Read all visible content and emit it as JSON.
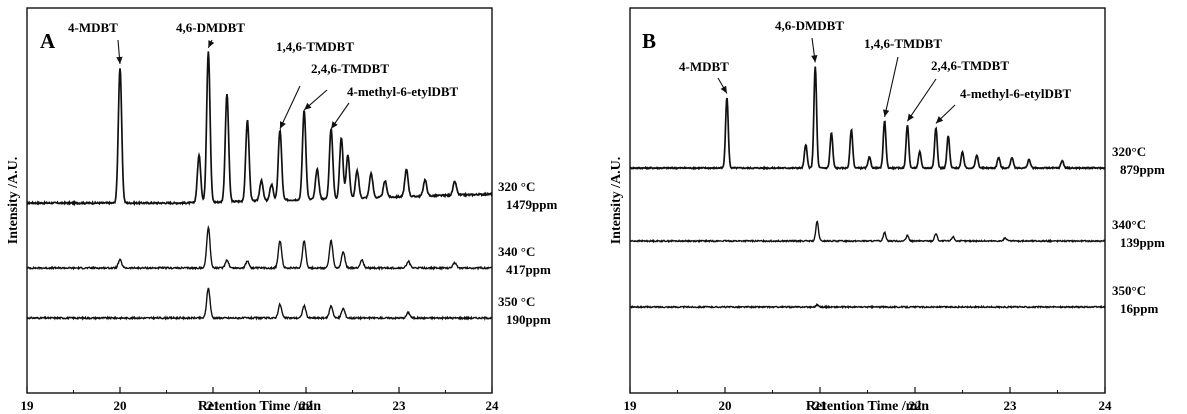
{
  "chart_data": [
    {
      "type": "line",
      "panel_label": "A",
      "xlabel": "Retention Time /min",
      "ylabel": "Intensity /A.U.",
      "xlim": [
        19,
        24
      ],
      "x_ticks": [
        "19",
        "20",
        "21",
        "22",
        "23",
        "24"
      ],
      "grid": false,
      "annotations": [
        {
          "text": "4-MDBT",
          "x": 20.0
        },
        {
          "text": "4,6-DMDBT",
          "x": 20.95
        },
        {
          "text": "1,4,6-TMDBT",
          "x": 21.72
        },
        {
          "text": "2,4,6-TMDBT",
          "x": 21.98
        },
        {
          "text": "4-methyl-6-etylDBT",
          "x": 22.27
        }
      ],
      "series": [
        {
          "label_temp": "320 °C",
          "label_conc": "1479ppm",
          "peaks": [
            [
              20.0,
              1.0
            ],
            [
              20.85,
              0.35
            ],
            [
              20.95,
              1.12
            ],
            [
              21.15,
              0.8
            ],
            [
              21.37,
              0.6
            ],
            [
              21.52,
              0.15
            ],
            [
              21.63,
              0.12
            ],
            [
              21.72,
              0.52
            ],
            [
              21.98,
              0.66
            ],
            [
              22.12,
              0.22
            ],
            [
              22.27,
              0.52
            ],
            [
              22.38,
              0.45
            ],
            [
              22.45,
              0.32
            ],
            [
              22.55,
              0.2
            ],
            [
              22.7,
              0.18
            ],
            [
              22.85,
              0.12
            ],
            [
              23.08,
              0.2
            ],
            [
              23.28,
              0.12
            ],
            [
              23.6,
              0.1
            ]
          ]
        },
        {
          "label_temp": "340 °C",
          "label_conc": "417ppm",
          "peaks": [
            [
              20.0,
              0.06
            ],
            [
              20.95,
              0.3
            ],
            [
              21.15,
              0.06
            ],
            [
              21.37,
              0.05
            ],
            [
              21.72,
              0.2
            ],
            [
              21.98,
              0.2
            ],
            [
              22.27,
              0.2
            ],
            [
              22.4,
              0.12
            ],
            [
              22.6,
              0.06
            ],
            [
              23.1,
              0.05
            ],
            [
              23.6,
              0.04
            ]
          ]
        },
        {
          "label_temp": "350 °C",
          "label_conc": "190ppm",
          "peaks": [
            [
              20.95,
              0.22
            ],
            [
              21.72,
              0.1
            ],
            [
              21.98,
              0.09
            ],
            [
              22.27,
              0.09
            ],
            [
              22.4,
              0.07
            ],
            [
              23.1,
              0.04
            ]
          ]
        }
      ]
    },
    {
      "type": "line",
      "panel_label": "B",
      "xlabel": "Retention Time /min",
      "ylabel": "Intensity /A.U.",
      "xlim": [
        19,
        24
      ],
      "x_ticks": [
        "19",
        "20",
        "21",
        "22",
        "23",
        "24"
      ],
      "grid": false,
      "annotations": [
        {
          "text": "4-MDBT",
          "x": 20.02
        },
        {
          "text": "4,6-DMDBT",
          "x": 20.95
        },
        {
          "text": "1,4,6-TMDBT",
          "x": 21.68
        },
        {
          "text": "2,4,6-TMDBT",
          "x": 21.92
        },
        {
          "text": "4-methyl-6-etylDBT",
          "x": 22.22
        }
      ],
      "series": [
        {
          "label_temp": "320°C",
          "label_conc": "879ppm",
          "peaks": [
            [
              20.02,
              0.66
            ],
            [
              20.85,
              0.22
            ],
            [
              20.95,
              0.95
            ],
            [
              21.12,
              0.33
            ],
            [
              21.33,
              0.36
            ],
            [
              21.52,
              0.1
            ],
            [
              21.68,
              0.44
            ],
            [
              21.92,
              0.4
            ],
            [
              22.05,
              0.15
            ],
            [
              22.22,
              0.38
            ],
            [
              22.35,
              0.3
            ],
            [
              22.5,
              0.15
            ],
            [
              22.65,
              0.12
            ],
            [
              22.88,
              0.1
            ],
            [
              23.02,
              0.1
            ],
            [
              23.2,
              0.08
            ],
            [
              23.55,
              0.07
            ]
          ]
        },
        {
          "label_temp": "340°C",
          "label_conc": "139ppm",
          "peaks": [
            [
              20.97,
              0.18
            ],
            [
              21.68,
              0.08
            ],
            [
              21.92,
              0.05
            ],
            [
              22.22,
              0.07
            ],
            [
              22.4,
              0.04
            ],
            [
              22.95,
              0.03
            ]
          ]
        },
        {
          "label_temp": "350°C",
          "label_conc": "16ppm",
          "peaks": [
            [
              20.97,
              0.02
            ]
          ]
        }
      ]
    }
  ]
}
